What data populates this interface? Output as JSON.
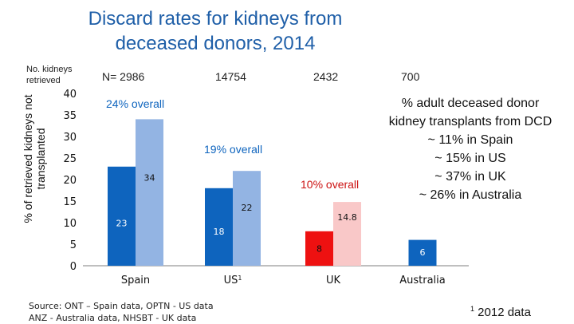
{
  "title_line1": "Discard rates for kidneys from",
  "title_line2": "deceased donors, 2014",
  "n_label_line1": "No. kidneys",
  "n_label_line2": "retrieved",
  "n_values": [
    "N=  2986",
    "14754",
    "2432",
    "700"
  ],
  "side_note": [
    "% adult deceased donor",
    "kidney transplants from DCD",
    "~ 11% in Spain",
    "~ 15% in US",
    "~ 37% in UK",
    "~ 26% in Australia"
  ],
  "source_line1": "Source: ONT – Spain data, OPTN - US data",
  "source_line2": "ANZ - Australia data, NHSBT - UK data",
  "footnote_mark": "1",
  "footnote_text": " 2012 data",
  "colors": {
    "dark_blue": "#0e64be",
    "light_blue": "#93b4e3",
    "red": "#ee1111",
    "pink": "#f9c8c8",
    "overall_red": "#cc1111"
  },
  "chart_data": {
    "type": "bar",
    "title": "Discard rates for kidneys from deceased donors, 2014",
    "ylabel": "% of retrieved kidneys not transplanted",
    "xlabel": "",
    "ylim": [
      0,
      40
    ],
    "yticks": [
      0,
      5,
      10,
      15,
      20,
      25,
      30,
      35,
      40
    ],
    "categories": [
      {
        "label": "Spain",
        "sup": ""
      },
      {
        "label": "US",
        "sup": "1"
      },
      {
        "label": "UK",
        "sup": ""
      },
      {
        "label": "Australia",
        "sup": ""
      }
    ],
    "bars": [
      {
        "category": "Spain",
        "value": 23,
        "label": "23",
        "kind": "dark"
      },
      {
        "category": "Spain",
        "value": 34,
        "label": "34",
        "kind": "light"
      },
      {
        "category": "US",
        "value": 18,
        "label": "18",
        "kind": "dark"
      },
      {
        "category": "US",
        "value": 22,
        "label": "22",
        "kind": "light"
      },
      {
        "category": "UK",
        "value": 8,
        "label": "8",
        "kind": "red"
      },
      {
        "category": "UK",
        "value": 14.8,
        "label": "14.8",
        "kind": "pink"
      },
      {
        "category": "Australia",
        "value": 6,
        "label": "6",
        "kind": "dark"
      }
    ],
    "overall_annotations": [
      {
        "category": "Spain",
        "text": "24% overall"
      },
      {
        "category": "US",
        "text": "19% overall"
      },
      {
        "category": "UK",
        "text": "10% overall"
      }
    ]
  }
}
